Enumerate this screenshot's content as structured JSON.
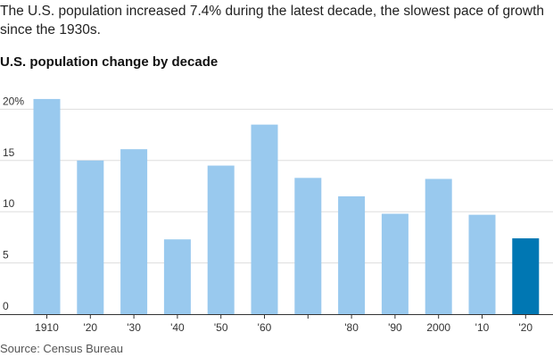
{
  "header": {
    "subtitle": "The U.S. population increased 7.4% during the latest decade, the slowest pace of growth since the 1930s.",
    "title": "U.S. population change by decade"
  },
  "footer": {
    "source": "Source: Census Bureau"
  },
  "colors": {
    "bar": "#99c9ee",
    "highlight": "#0077b3",
    "grid": "#dddddd",
    "baseline": "#333333"
  },
  "chart_data": {
    "type": "bar",
    "title": "U.S. population change by decade",
    "subtitle": "The U.S. population increased 7.4% during the latest decade, the slowest pace of growth since the 1930s.",
    "categories": [
      "1910",
      "'20",
      "'30",
      "'40",
      "'50",
      "'60",
      "",
      "'80",
      "'90",
      "2000",
      "'10",
      "'20"
    ],
    "values": [
      21.0,
      15.0,
      16.1,
      7.3,
      14.5,
      18.5,
      13.3,
      11.5,
      9.8,
      13.2,
      9.7,
      7.4
    ],
    "highlight_index": 11,
    "y_ticks": [
      0,
      5,
      10,
      15,
      20
    ],
    "y_tick_labels": [
      "0",
      "5",
      "10",
      "15",
      "20%"
    ],
    "ylim": [
      0,
      22
    ],
    "xlabel": "",
    "ylabel": "",
    "grid": true
  }
}
